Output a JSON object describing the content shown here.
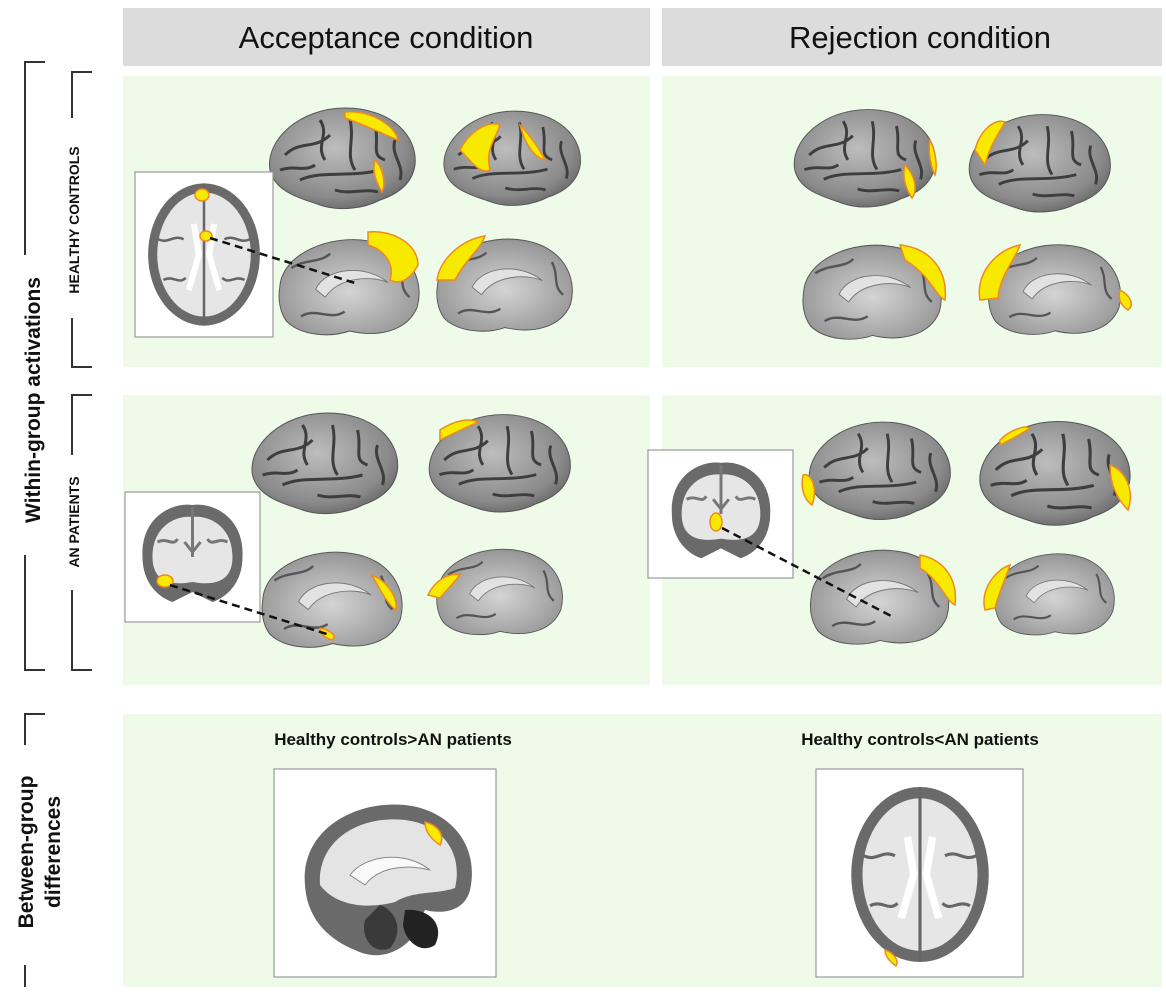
{
  "columns": [
    "Acceptance condition",
    "Rejection condition"
  ],
  "within_group": {
    "label": "Within-group activations",
    "rows": [
      "HEALTHY CONTROLS",
      "AN PATIENTS"
    ]
  },
  "between_group": {
    "label_lines": [
      "Between-group",
      "differences"
    ],
    "contrasts": [
      "Healthy controls>AN patients",
      "Healthy controls<AN patients"
    ]
  }
}
